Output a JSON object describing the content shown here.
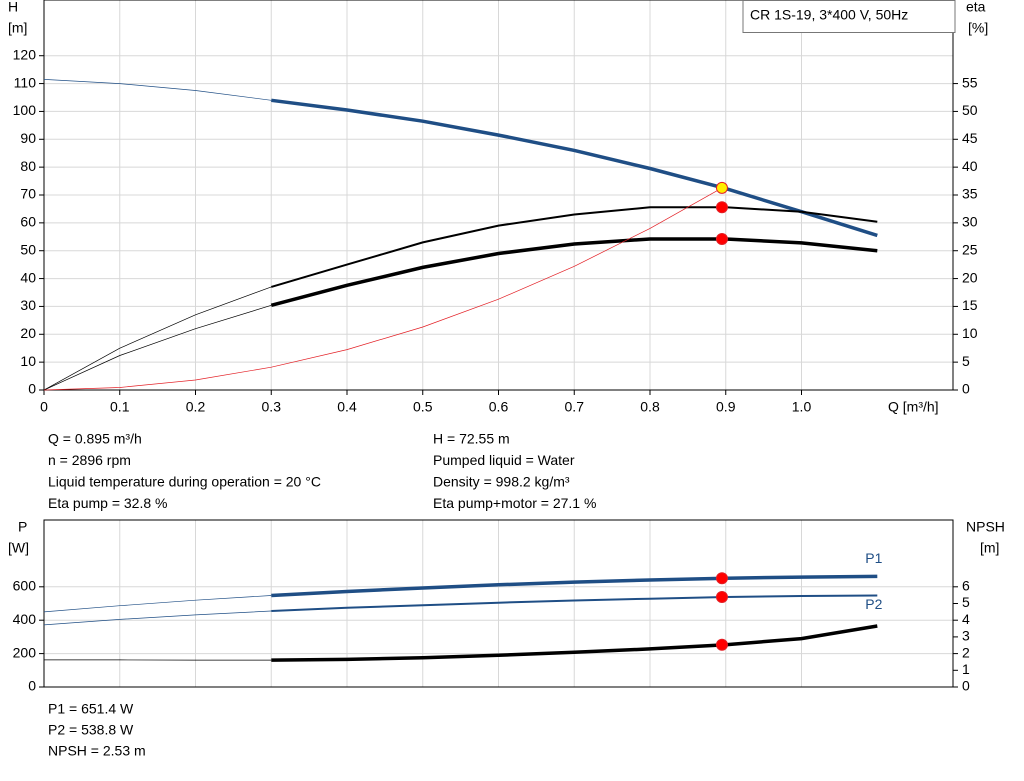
{
  "chart_data": [
    {
      "type": "line",
      "legend_box": "CR 1S-19, 3*400 V, 50Hz",
      "y_label": [
        "H",
        "[m]"
      ],
      "y2_label": [
        "eta",
        "[%]"
      ],
      "x_label": "Q [m³/h]",
      "xlim": [
        0,
        1.2
      ],
      "xticks": [
        0,
        0.1,
        0.2,
        0.3,
        0.4,
        0.5,
        0.6,
        0.7,
        0.8,
        0.9,
        {
          "value": 1.0,
          "label": "1.0"
        }
      ],
      "ylim": [
        0,
        140
      ],
      "yticks": [
        0,
        10,
        20,
        30,
        40,
        50,
        60,
        70,
        80,
        90,
        100,
        110,
        120
      ],
      "y2lim": [
        0,
        70
      ],
      "y2ticks": [
        0,
        5,
        10,
        15,
        20,
        25,
        30,
        35,
        40,
        45,
        50,
        55
      ],
      "grid": true,
      "series": [
        {
          "color": "#1f4e85",
          "width": "thin",
          "x": [
            0,
            0.1,
            0.2,
            0.3
          ],
          "values": [
            111.5,
            110,
            107.5,
            104
          ]
        },
        {
          "color": "#1f4e85",
          "width": "thick",
          "x": [
            0.3,
            0.4,
            0.5,
            0.6,
            0.7,
            0.8,
            0.9,
            1.0,
            1.1
          ],
          "values": [
            104,
            100.5,
            96.5,
            91.5,
            86,
            79.5,
            72.3,
            64,
            55.5
          ]
        },
        {
          "color": "#000000",
          "width": "thin",
          "axis": "y2",
          "x": [
            0,
            0.1,
            0.2,
            0.3
          ],
          "values": [
            0,
            7.5,
            13.5,
            18.5
          ]
        },
        {
          "color": "#000000",
          "width": "medium",
          "axis": "y2",
          "x": [
            0.3,
            0.4,
            0.5,
            0.6,
            0.7,
            0.8,
            0.9,
            1.0,
            1.1
          ],
          "values": [
            18.5,
            22.5,
            26.5,
            29.5,
            31.5,
            32.8,
            32.8,
            32,
            30.2
          ]
        },
        {
          "color": "#000000",
          "width": "thin",
          "axis": "y2",
          "x": [
            0,
            0.1,
            0.2,
            0.3
          ],
          "values": [
            0,
            6.2,
            11,
            15.2
          ]
        },
        {
          "color": "#000000",
          "width": "thick",
          "axis": "y2",
          "x": [
            0.3,
            0.4,
            0.5,
            0.6,
            0.7,
            0.8,
            0.9,
            1.0,
            1.1
          ],
          "values": [
            15.2,
            18.8,
            22,
            24.5,
            26.2,
            27.1,
            27.1,
            26.4,
            25
          ]
        },
        {
          "color": "#e31e24",
          "width": "thin",
          "x": [
            0,
            0.1,
            0.2,
            0.3,
            0.4,
            0.5,
            0.6,
            0.7,
            0.8,
            0.895
          ],
          "values": [
            0,
            0.9,
            3.6,
            8.2,
            14.5,
            22.6,
            32.6,
            44.4,
            58,
            72.55
          ]
        }
      ],
      "points": [
        {
          "x": 0.895,
          "value": 72.55,
          "color": "#ffee00"
        },
        {
          "x": 0.895,
          "value": 32.8,
          "color": "#ff0000",
          "axis": "y2"
        },
        {
          "x": 0.895,
          "value": 27.1,
          "color": "#ff0000",
          "axis": "y2"
        }
      ]
    },
    {
      "type": "line",
      "y_label": [
        "P",
        "[W]"
      ],
      "y2_label": [
        "NPSH",
        "[m]"
      ],
      "xlim": [
        0,
        1.2
      ],
      "ylim": [
        0,
        1000
      ],
      "yticks": [
        0,
        200,
        400,
        600
      ],
      "y2lim": [
        0,
        10
      ],
      "y2ticks": [
        0,
        1,
        2,
        3,
        4,
        5,
        6
      ],
      "grid": true,
      "series": [
        {
          "color": "#1f4e85",
          "width": "thin",
          "x": [
            0,
            0.1,
            0.2,
            0.3
          ],
          "values": [
            450,
            487,
            520,
            548
          ]
        },
        {
          "name": "P1",
          "label_side": "above",
          "color": "#1f4e85",
          "width": "thick",
          "x": [
            0.3,
            0.4,
            0.5,
            0.6,
            0.7,
            0.8,
            0.9,
            1.0,
            1.1
          ],
          "values": [
            548,
            572,
            593,
            612,
            628,
            641,
            651.4,
            658,
            662
          ]
        },
        {
          "color": "#1f4e85",
          "width": "thin",
          "x": [
            0,
            0.1,
            0.2,
            0.3
          ],
          "values": [
            372,
            405,
            432,
            455
          ]
        },
        {
          "name": "P2",
          "label_side": "below",
          "color": "#1f4e85",
          "width": "medium",
          "x": [
            0.3,
            0.4,
            0.5,
            0.6,
            0.7,
            0.8,
            0.9,
            1.0,
            1.1
          ],
          "values": [
            455,
            474,
            490,
            505,
            518,
            529,
            538.8,
            545,
            548
          ]
        },
        {
          "color": "#000000",
          "width": "thin",
          "axis": "y2",
          "x": [
            0,
            0.1,
            0.2,
            0.3
          ],
          "values": [
            1.62,
            1.62,
            1.61,
            1.61
          ]
        },
        {
          "color": "#000000",
          "width": "thick",
          "axis": "y2",
          "x": [
            0.3,
            0.4,
            0.5,
            0.6,
            0.7,
            0.8,
            0.9,
            1.0,
            1.1
          ],
          "values": [
            1.61,
            1.65,
            1.75,
            1.9,
            2.08,
            2.28,
            2.53,
            2.9,
            3.65
          ]
        }
      ],
      "points": [
        {
          "x": 0.895,
          "value": 651.4,
          "color": "#ff0000"
        },
        {
          "x": 0.895,
          "value": 538.8,
          "color": "#ff0000"
        },
        {
          "x": 0.895,
          "value": 2.53,
          "color": "#ff0000",
          "axis": "y2"
        }
      ]
    }
  ],
  "info_top": {
    "left": [
      "Q = 0.895 m³/h",
      "n = 2896 rpm",
      "Liquid temperature during operation = 20 °C",
      "Eta pump = 32.8 %"
    ],
    "right": [
      "H = 72.55 m",
      "Pumped liquid = Water",
      "Density = 998.2 kg/m³",
      "Eta pump+motor = 27.1 %"
    ]
  },
  "info_bottom": [
    "P1 = 651.4 W",
    "P2 = 538.8 W",
    "NPSH = 2.53 m"
  ]
}
